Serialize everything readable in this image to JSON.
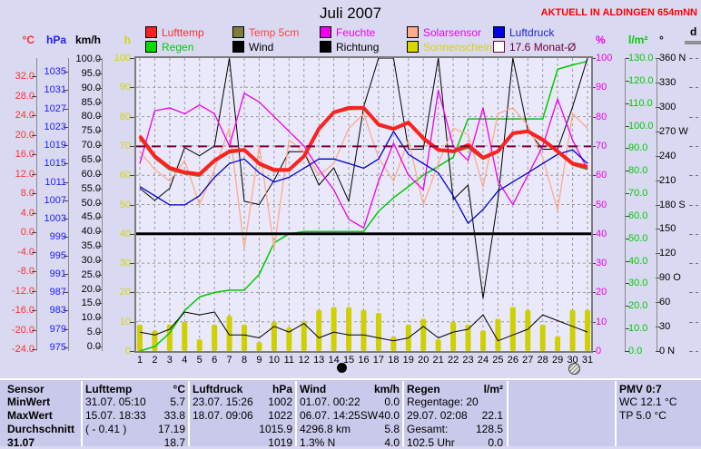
{
  "header": {
    "title": "Juli 2007",
    "station_banner": "AKTUELL IN ALDINGEN 654mNN"
  },
  "legend": {
    "items": [
      {
        "label": "Lufttemp",
        "box": "#ff2020",
        "text": "#ff3030"
      },
      {
        "label": "Temp 5cm",
        "box": "#7e7e3c",
        "text": "#ff4040"
      },
      {
        "label": "Feuchte",
        "box": "#ee00ee",
        "text": "#ee00ee"
      },
      {
        "label": "Solarsensor",
        "box": "#ffaa88",
        "text": "#ee00ee"
      },
      {
        "label": "Luftdruck",
        "box": "#0000e0",
        "text": "#2020e0"
      },
      {
        "label": "Regen",
        "box": "#00dd00",
        "text": "#00cc00"
      },
      {
        "label": "Wind",
        "box": "#000000",
        "text": "#000000"
      },
      {
        "label": "Richtung",
        "box": "#000000",
        "text": "#000000"
      },
      {
        "label": "Sonnenschein",
        "box": "#d6d600",
        "text": "#d6d600"
      },
      {
        "label": "17.6 Monat-Ø",
        "box": "#ffffff",
        "border": "#800040",
        "text": "#700038"
      }
    ]
  },
  "axes": {
    "left": [
      {
        "id": "temp",
        "unit": "°C",
        "color": "#ff3030",
        "tick_labels": [
          "32.0",
          "28.0",
          "24.0",
          "20.0",
          "16.0",
          "12.0",
          "8.0",
          "4.0",
          "0.0",
          "-4.0",
          "-8.0",
          "-12.0",
          "-16.0",
          "-20.0",
          "-24.0"
        ],
        "tick_values": [
          32,
          28,
          24,
          20,
          16,
          12,
          8,
          4,
          0,
          -4,
          -8,
          -12,
          -16,
          -20,
          -24
        ]
      },
      {
        "id": "hpa",
        "unit": "hPa",
        "color": "#2020ff",
        "tick_labels": [
          "1035",
          "1031",
          "1027",
          "1023",
          "1019",
          "1015",
          "1011",
          "1007",
          "1003",
          "999",
          "995",
          "991",
          "987",
          "983",
          "979",
          "975"
        ],
        "tick_values": [
          1035,
          1031,
          1027,
          1023,
          1019,
          1015,
          1011,
          1007,
          1003,
          999,
          995,
          991,
          987,
          983,
          979,
          975
        ]
      },
      {
        "id": "kmh",
        "unit": "km/h",
        "color": "#000000",
        "tick_labels": [
          "100.0",
          "95.0",
          "90.0",
          "85.0",
          "80.0",
          "75.0",
          "70.0",
          "65.0",
          "60.0",
          "55.0",
          "50.0",
          "45.0",
          "40.0",
          "35.0",
          "30.0",
          "25.0",
          "20.0",
          "15.0",
          "10.0",
          "5.0",
          "0.0"
        ],
        "tick_values": [
          100,
          95,
          90,
          85,
          80,
          75,
          70,
          65,
          60,
          55,
          50,
          45,
          40,
          35,
          30,
          25,
          20,
          15,
          10,
          5,
          0
        ]
      },
      {
        "id": "h",
        "unit": "h",
        "color": "#d6d600",
        "tick_labels": [
          "100",
          "90",
          "80",
          "70",
          "60",
          "50",
          "40",
          "30",
          "20",
          "10",
          "0"
        ],
        "tick_values": [
          100,
          90,
          80,
          70,
          60,
          50,
          40,
          30,
          20,
          10,
          0
        ]
      }
    ],
    "right": [
      {
        "id": "pct",
        "unit": "%",
        "color": "#ee00ee",
        "tick_labels": [
          "100",
          "90",
          "80",
          "70",
          "60",
          "50",
          "40",
          "30",
          "20",
          "10",
          "0"
        ],
        "tick_values": [
          100,
          90,
          80,
          70,
          60,
          50,
          40,
          30,
          20,
          10,
          0
        ]
      },
      {
        "id": "lm2",
        "unit": "l/m²",
        "color": "#00cc00",
        "tick_labels": [
          "130.0",
          "120.0",
          "110.0",
          "100.0",
          "90.0",
          "80.0",
          "70.0",
          "60.0",
          "50.0",
          "40.0",
          "30.0",
          "20.0",
          "10.0",
          "0.0"
        ],
        "tick_values": [
          130,
          120,
          110,
          100,
          90,
          80,
          70,
          60,
          50,
          40,
          30,
          20,
          10,
          0
        ]
      },
      {
        "id": "dir",
        "unit": "°",
        "color": "#000000",
        "tick_labels": [
          "360 N",
          "330",
          "300",
          "270 W",
          "240",
          "210",
          "180 S",
          "150",
          "120",
          "90 O",
          "60",
          "30",
          "0  N"
        ],
        "tick_values": [
          360,
          330,
          300,
          270,
          240,
          210,
          180,
          150,
          120,
          90,
          60,
          30,
          0
        ]
      },
      {
        "id": "d",
        "unit": "d",
        "color": "#000000",
        "tick_labels": [],
        "tick_values": []
      }
    ]
  },
  "x_axis": {
    "day_labels": [
      "1",
      "2",
      "3",
      "4",
      "5",
      "6",
      "7",
      "8",
      "9",
      "10",
      "11",
      "12",
      "13",
      "14",
      "15",
      "16",
      "17",
      "18",
      "19",
      "20",
      "21",
      "22",
      "23",
      "24",
      "25",
      "26",
      "27",
      "28",
      "29",
      "30",
      "31"
    ]
  },
  "markers": {
    "moons": [
      {
        "day": 14.5,
        "type": "new-moon"
      },
      {
        "day": 30,
        "type": "full-moon"
      }
    ]
  },
  "chart_data": {
    "type": "line",
    "title": "Juli 2007",
    "x": [
      1,
      2,
      3,
      4,
      5,
      6,
      7,
      8,
      9,
      10,
      11,
      12,
      13,
      14,
      15,
      16,
      17,
      18,
      19,
      20,
      21,
      22,
      23,
      24,
      25,
      26,
      27,
      28,
      29,
      30,
      31
    ],
    "axis_ranges": {
      "temp": [
        -24,
        32
      ],
      "hpa": [
        975,
        1035
      ],
      "kmh": [
        0,
        100
      ],
      "h": [
        0,
        100
      ],
      "pct": [
        0,
        100
      ],
      "lm2": [
        0,
        130
      ],
      "dir": [
        0,
        360
      ]
    },
    "grid": true,
    "series": [
      {
        "name": "Sonnenschein",
        "type": "bar",
        "axis": "h",
        "color": "#d0d000",
        "unit": "h",
        "values": [
          9,
          7,
          9,
          10,
          4,
          9,
          12,
          9,
          3,
          10,
          8,
          10,
          14,
          15,
          15,
          14,
          13,
          5,
          9,
          11,
          4,
          10,
          9,
          7,
          11,
          15,
          14,
          9,
          5,
          14,
          14
        ]
      },
      {
        "name": "Regen (Summe)",
        "type": "line",
        "axis": "lm2",
        "color": "#00cc00",
        "width": 1.5,
        "unit": "l/m²",
        "values": [
          0,
          2,
          8,
          18,
          24,
          26,
          27,
          27,
          34,
          48,
          52,
          53,
          53,
          53,
          53,
          53,
          62,
          68,
          73,
          78,
          82,
          86,
          103,
          103,
          103,
          103,
          103,
          103,
          125,
          127,
          128.5
        ]
      },
      {
        "name": "Richtung",
        "type": "line",
        "axis": "dir",
        "color": "#000000",
        "width": 1,
        "unit": "°",
        "values": [
          200,
          185,
          200,
          250,
          240,
          252,
          360,
          184,
          180,
          210,
          245,
          245,
          204,
          225,
          184,
          300,
          360,
          360,
          248,
          248,
          360,
          186,
          204,
          65,
          186,
          360,
          271,
          248,
          248,
          300,
          360
        ]
      },
      {
        "name": "Wind",
        "type": "line",
        "axis": "kmh",
        "color": "#000000",
        "width": 1,
        "unit": "km/h",
        "values": [
          5,
          4,
          6,
          12,
          11,
          12,
          4,
          4,
          3,
          7,
          5,
          8,
          3,
          5,
          4,
          4,
          3,
          2,
          3,
          7,
          3,
          5,
          6,
          11,
          2,
          4,
          6,
          11,
          9,
          7,
          5
        ]
      },
      {
        "name": "Solarsensor",
        "type": "line",
        "axis": "pct",
        "color": "#ffaa88",
        "width": 1.3,
        "unit": "%",
        "values": [
          68,
          62,
          58,
          65,
          50,
          62,
          76,
          35,
          70,
          35,
          72,
          68,
          60,
          64,
          76,
          81,
          66,
          58,
          72,
          50,
          64,
          76,
          74,
          56,
          81,
          83,
          77,
          66,
          48,
          81,
          76
        ]
      },
      {
        "name": "Feuchte",
        "type": "line",
        "axis": "pct",
        "color": "#ee00ee",
        "width": 1.3,
        "unit": "%",
        "values": [
          64,
          82,
          83,
          81,
          84,
          81,
          70,
          88,
          85,
          80,
          75,
          70,
          62,
          55,
          45,
          42,
          58,
          71,
          60,
          55,
          89,
          70,
          65,
          83,
          58,
          50,
          60,
          70,
          86,
          72,
          62
        ]
      },
      {
        "name": "Luftdruck",
        "type": "line",
        "axis": "hpa",
        "color": "#0000d0",
        "width": 1.3,
        "unit": "hPa",
        "values": [
          1010,
          1008,
          1006,
          1006,
          1008,
          1012,
          1015,
          1016,
          1013,
          1011,
          1012,
          1014,
          1016,
          1016,
          1015,
          1014,
          1016,
          1022,
          1017,
          1015,
          1013,
          1008,
          1002,
          1005,
          1009,
          1011,
          1013,
          1015,
          1017,
          1018,
          1015
        ]
      },
      {
        "name": "Temp 5cm",
        "type": "line",
        "axis": "temp",
        "color": "#7e7e3c",
        "width": 2,
        "unit": "°C",
        "values": [
          19.2,
          15.2,
          12.8,
          12.0,
          11.5,
          14.5,
          16.3,
          16.7,
          13.8,
          12.5,
          12.6,
          15.3,
          21.0,
          24.4,
          25.2,
          25.3,
          21.8,
          21.0,
          22.3,
          19.0,
          16.7,
          16.4,
          17.3,
          15.0,
          16.4,
          20.1,
          20.5,
          18.7,
          16.3,
          13.8,
          12.9
        ]
      },
      {
        "name": "Lufttemp",
        "type": "line",
        "axis": "temp",
        "color": "#ff2020",
        "width": 4,
        "unit": "°C",
        "values": [
          19.7,
          15.6,
          13.2,
          12.3,
          11.9,
          14.7,
          16.6,
          16.9,
          14.1,
          12.8,
          12.8,
          15.6,
          21.2,
          24.6,
          25.5,
          25.5,
          22.1,
          21.2,
          22.5,
          19.3,
          16.9,
          16.6,
          17.9,
          15.3,
          16.6,
          20.3,
          20.7,
          19.0,
          16.6,
          14.1,
          13.4
        ]
      }
    ],
    "reference_lines": [
      {
        "label": "17.6 Monat-Ø",
        "axis": "temp",
        "value": 17.6,
        "color": "#800040",
        "style": "dashed"
      },
      {
        "label": "",
        "axis": "pct",
        "value": 40,
        "color": "#000000",
        "style": "solid-thick"
      }
    ],
    "legend_position": "top"
  },
  "table": {
    "columns": [
      {
        "id": "labels",
        "rows": [
          {
            "l": "Sensor",
            "r": ""
          },
          {
            "l": "MinWert",
            "r": ""
          },
          {
            "l": "MaxWert",
            "r": ""
          },
          {
            "l": "Durchschnitt",
            "r": ""
          },
          {
            "l": "31.07",
            "r": ""
          }
        ]
      },
      {
        "id": "lufttemp",
        "rows": [
          {
            "l": "Lufttemp",
            "r": "°C"
          },
          {
            "l": "31.07.  05:10",
            "r": "5.7"
          },
          {
            "l": "15.07.  18:33",
            "r": "33.8"
          },
          {
            "l": "( - 0.41 )",
            "r": "17.19"
          },
          {
            "l": "",
            "r": "18.7"
          }
        ]
      },
      {
        "id": "luftdruck",
        "rows": [
          {
            "l": "Luftdruck",
            "r": "hPa"
          },
          {
            "l": "23.07.  15:26",
            "r": "1002"
          },
          {
            "l": "18.07.  09:06",
            "r": "1022"
          },
          {
            "l": "",
            "r": "1015.9"
          },
          {
            "l": "",
            "r": "1019"
          }
        ]
      },
      {
        "id": "wind",
        "rows": [
          {
            "l": "Wind",
            "r": "km/h"
          },
          {
            "l": "01.07.  00:22",
            "r": "0.0"
          },
          {
            "l": "06.07.  14:25SW",
            "r": "40.0"
          },
          {
            "l": "4296.8 km",
            "r": "5.8"
          },
          {
            "l": "1.3% N",
            "r": "4.0"
          }
        ]
      },
      {
        "id": "regen",
        "rows": [
          {
            "l": "Regen",
            "r": "l/m²"
          },
          {
            "l": "Regentage: 20",
            "r": ""
          },
          {
            "l": "29.07.  02:08",
            "r": "22.1"
          },
          {
            "l": "Gesamt:",
            "r": "128.5"
          },
          {
            "l": "102.5 Uhr",
            "r": "0.0"
          }
        ]
      },
      {
        "id": "spare",
        "rows": [
          {
            "l": "",
            "r": ""
          },
          {
            "l": "",
            "r": ""
          },
          {
            "l": "",
            "r": ""
          },
          {
            "l": "",
            "r": ""
          },
          {
            "l": "",
            "r": ""
          }
        ]
      },
      {
        "id": "pmv",
        "rows": [
          {
            "l": "PMV 0:7",
            "r": ""
          },
          {
            "l": "WC 12.1 °C",
            "r": ""
          },
          {
            "l": "TP 5.0 °C",
            "r": ""
          },
          {
            "l": "",
            "r": ""
          },
          {
            "l": "",
            "r": ""
          }
        ]
      }
    ]
  },
  "colors": {
    "page_bg": "#d9d9f2",
    "plot_bg": "#e9e9fb",
    "table_bg": "#c9c9ec",
    "grid": "#9a9a9a",
    "border": "#7d7d7d",
    "banner_red": "#ff0000"
  }
}
